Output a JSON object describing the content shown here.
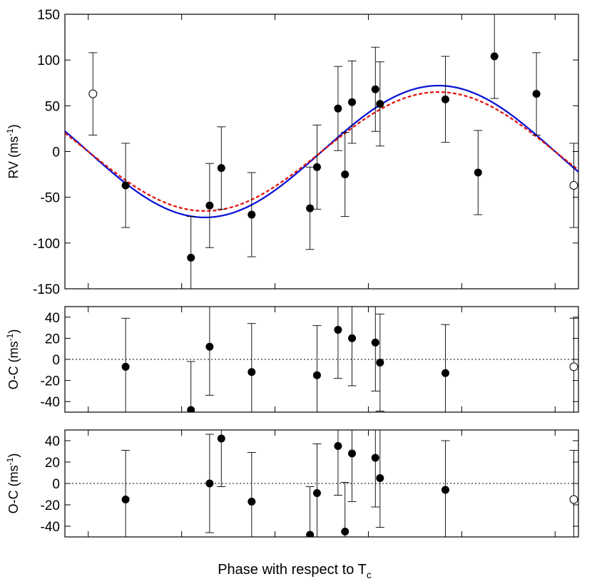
{
  "figure": {
    "xlabel_text": "Phase with respect to T",
    "xlabel_sub": "c"
  },
  "chart_data": [
    {
      "type": "scatter",
      "panel": "rv",
      "ylabel": "RV (ms",
      "ylabel_sup": "-1",
      "ylabel_close": ")",
      "xlim": [
        -0.05,
        1.05
      ],
      "ylim": [
        -150,
        150
      ],
      "y_ticks": [
        -150,
        -100,
        -50,
        0,
        50,
        100,
        150
      ],
      "x_ticks": [
        0,
        0.2,
        0.4,
        0.6,
        0.8,
        1.0
      ],
      "grid": false,
      "models": [
        {
          "style": "solid",
          "color": "#0b14d6",
          "amplitude": 72
        },
        {
          "style": "dashed",
          "color": "#e3140f",
          "amplitude": 65
        }
      ],
      "points": [
        {
          "x": 0.01,
          "y": 63,
          "err": 45,
          "filled": false
        },
        {
          "x": 0.08,
          "y": -37,
          "err": 46,
          "filled": true
        },
        {
          "x": 0.22,
          "y": -116,
          "err": 45,
          "filled": true
        },
        {
          "x": 0.26,
          "y": -59,
          "err": 46,
          "filled": true
        },
        {
          "x": 0.285,
          "y": -18,
          "err": 45,
          "filled": true
        },
        {
          "x": 0.35,
          "y": -69,
          "err": 46,
          "filled": true
        },
        {
          "x": 0.475,
          "y": -62,
          "err": 45,
          "filled": true
        },
        {
          "x": 0.49,
          "y": -17,
          "err": 46,
          "filled": true
        },
        {
          "x": 0.535,
          "y": 47,
          "err": 46,
          "filled": true
        },
        {
          "x": 0.55,
          "y": -25,
          "err": 46,
          "filled": true
        },
        {
          "x": 0.565,
          "y": 54,
          "err": 45,
          "filled": true
        },
        {
          "x": 0.615,
          "y": 68,
          "err": 46,
          "filled": true
        },
        {
          "x": 0.625,
          "y": 52,
          "err": 46,
          "filled": true
        },
        {
          "x": 0.765,
          "y": 57,
          "err": 47,
          "filled": true
        },
        {
          "x": 0.835,
          "y": -23,
          "err": 46,
          "filled": true
        },
        {
          "x": 0.87,
          "y": 104,
          "err": 46,
          "filled": true
        },
        {
          "x": 0.96,
          "y": 63,
          "err": 45,
          "filled": true
        },
        {
          "x": 1.04,
          "y": -37,
          "err": 46,
          "filled": false
        }
      ]
    },
    {
      "type": "scatter",
      "panel": "oc1",
      "ylabel": "O-C (ms",
      "ylabel_sup": "-1",
      "ylabel_close": ")",
      "xlim": [
        -0.05,
        1.05
      ],
      "ylim": [
        -50,
        50
      ],
      "y_ticks": [
        -40,
        -20,
        0,
        20,
        40
      ],
      "x_ticks": [
        0,
        0.2,
        0.4,
        0.6,
        0.8,
        1.0
      ],
      "zero_line": true,
      "points": [
        {
          "x": 0.08,
          "y": -7,
          "err": 46,
          "filled": true
        },
        {
          "x": 0.22,
          "y": -48,
          "err": 46,
          "filled": true
        },
        {
          "x": 0.26,
          "y": 12,
          "err": 46,
          "filled": true
        },
        {
          "x": 0.35,
          "y": -12,
          "err": 46,
          "filled": true
        },
        {
          "x": 0.49,
          "y": -15,
          "err": 47,
          "filled": true
        },
        {
          "x": 0.535,
          "y": 28,
          "err": 46,
          "filled": true
        },
        {
          "x": 0.565,
          "y": 20,
          "err": 45,
          "filled": true
        },
        {
          "x": 0.615,
          "y": 16,
          "err": 46,
          "filled": true
        },
        {
          "x": 0.625,
          "y": -3,
          "err": 46,
          "filled": true
        },
        {
          "x": 0.765,
          "y": -13,
          "err": 46,
          "filled": true
        },
        {
          "x": 1.04,
          "y": -7,
          "err": 46,
          "filled": false
        }
      ]
    },
    {
      "type": "scatter",
      "panel": "oc2",
      "ylabel": "O-C (ms",
      "ylabel_sup": "-1",
      "ylabel_close": ")",
      "xlim": [
        -0.05,
        1.05
      ],
      "ylim": [
        -50,
        50
      ],
      "y_ticks": [
        -40,
        -20,
        0,
        20,
        40
      ],
      "x_ticks": [
        0,
        0.2,
        0.4,
        0.6,
        0.8,
        1.0
      ],
      "zero_line": true,
      "points": [
        {
          "x": 0.08,
          "y": -15,
          "err": 46,
          "filled": true
        },
        {
          "x": 0.26,
          "y": 0,
          "err": 46,
          "filled": true
        },
        {
          "x": 0.285,
          "y": 42,
          "err": 45,
          "filled": true
        },
        {
          "x": 0.35,
          "y": -17,
          "err": 46,
          "filled": true
        },
        {
          "x": 0.475,
          "y": -48,
          "err": 45,
          "filled": true
        },
        {
          "x": 0.49,
          "y": -9,
          "err": 46,
          "filled": true
        },
        {
          "x": 0.535,
          "y": 35,
          "err": 46,
          "filled": true
        },
        {
          "x": 0.55,
          "y": -45,
          "err": 46,
          "filled": true
        },
        {
          "x": 0.565,
          "y": 28,
          "err": 45,
          "filled": true
        },
        {
          "x": 0.615,
          "y": 24,
          "err": 46,
          "filled": true
        },
        {
          "x": 0.625,
          "y": 5,
          "err": 46,
          "filled": true
        },
        {
          "x": 0.765,
          "y": -6,
          "err": 46,
          "filled": true
        },
        {
          "x": 1.04,
          "y": -15,
          "err": 46,
          "filled": false
        }
      ]
    }
  ]
}
